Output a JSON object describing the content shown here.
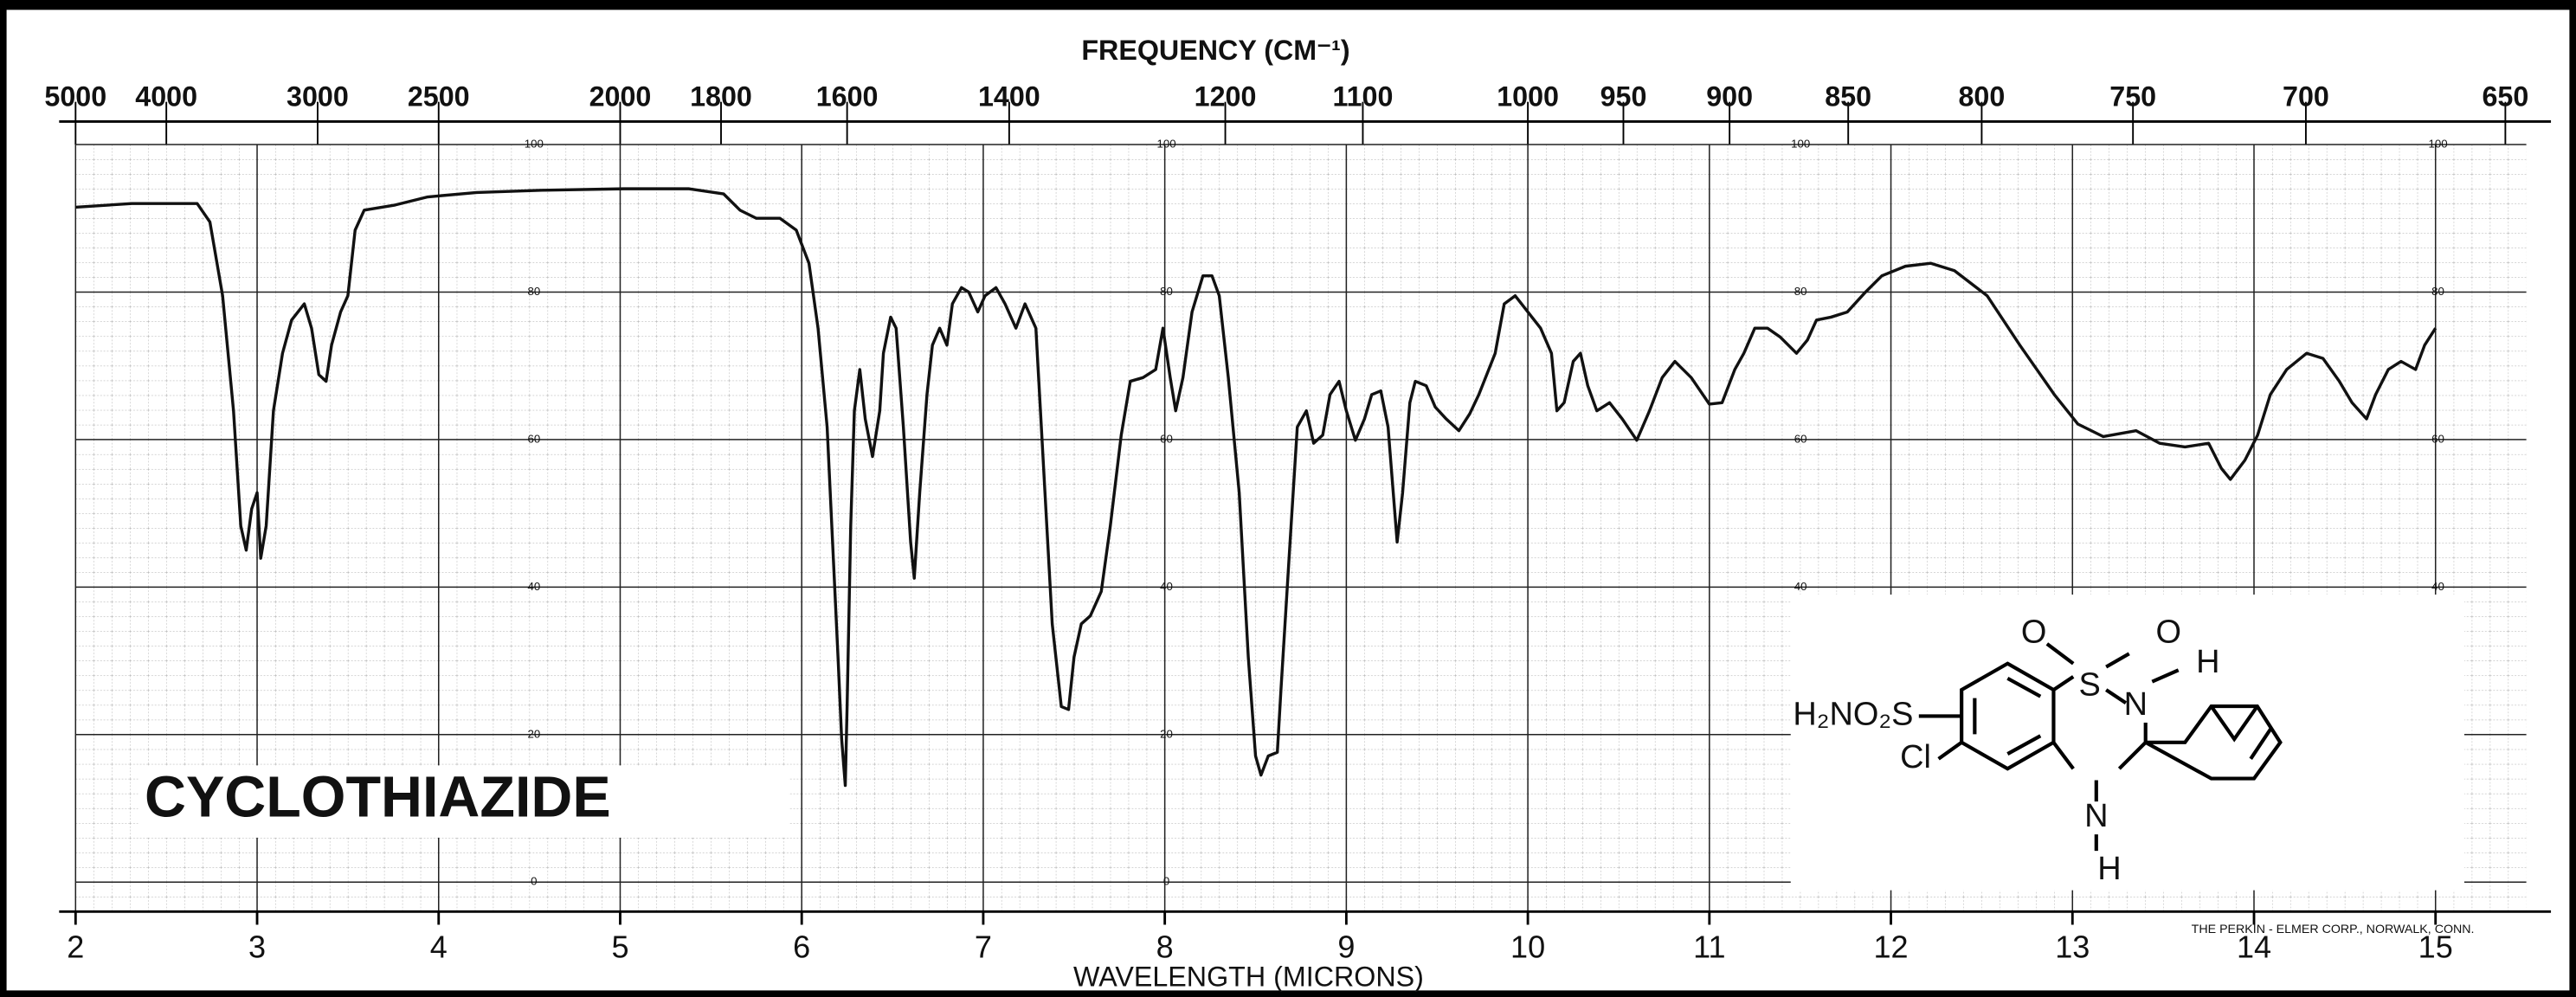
{
  "chart_data": {
    "type": "line",
    "title": "FREQUENCY (CM⁻¹)",
    "x_label": "WAVELENGTH (MICRONS)",
    "compound_name": "CYCLOTHIAZIDE",
    "credit": "THE PERKIN - ELMER CORP., NORWALK, CONN.",
    "structure_labels": [
      "O",
      "O",
      "H",
      "H₂NO₂S",
      "S",
      "N",
      "Cl",
      "N",
      "H"
    ],
    "color": "#111111",
    "grid": true,
    "xlim": [
      2,
      15.5
    ],
    "ylim": [
      -4,
      100
    ],
    "xticks": [
      2,
      3,
      4,
      5,
      6,
      7,
      8,
      9,
      10,
      11,
      12,
      13,
      14,
      15
    ],
    "yticks": [
      0,
      20,
      40,
      60,
      80,
      100
    ],
    "x2ticks": [
      5000,
      4000,
      3000,
      2500,
      2000,
      1800,
      1600,
      1400,
      1200,
      1100,
      1000,
      950,
      900,
      850,
      800,
      750,
      700,
      650
    ],
    "x": [
      2.0,
      2.31,
      2.67,
      2.74,
      2.81,
      2.87,
      2.91,
      2.94,
      2.97,
      3.0,
      3.02,
      3.05,
      3.09,
      3.14,
      3.19,
      3.26,
      3.3,
      3.34,
      3.38,
      3.41,
      3.46,
      3.5,
      3.54,
      3.59,
      3.76,
      3.94,
      4.21,
      4.57,
      5.02,
      5.38,
      5.57,
      5.66,
      5.75,
      5.88,
      5.97,
      6.04,
      6.09,
      6.14,
      6.17,
      6.2,
      6.22,
      6.24,
      6.25,
      6.27,
      6.29,
      6.32,
      6.35,
      6.39,
      6.43,
      6.45,
      6.49,
      6.52,
      6.56,
      6.6,
      6.62,
      6.65,
      6.69,
      6.72,
      6.76,
      6.8,
      6.83,
      6.88,
      6.92,
      6.97,
      7.01,
      7.07,
      7.12,
      7.18,
      7.23,
      7.29,
      7.34,
      7.38,
      7.43,
      7.47,
      7.5,
      7.54,
      7.59,
      7.65,
      7.7,
      7.76,
      7.81,
      7.88,
      7.95,
      7.99,
      8.03,
      8.06,
      8.1,
      8.15,
      8.21,
      8.26,
      8.3,
      8.35,
      8.41,
      8.46,
      8.5,
      8.53,
      8.57,
      8.62,
      8.64,
      8.69,
      8.73,
      8.78,
      8.82,
      8.87,
      8.91,
      8.96,
      9.0,
      9.05,
      9.1,
      9.14,
      9.19,
      9.23,
      9.28,
      9.31,
      9.35,
      9.38,
      9.44,
      9.49,
      9.55,
      9.62,
      9.68,
      9.73,
      9.82,
      9.87,
      9.93,
      10.0,
      10.07,
      10.13,
      10.16,
      10.2,
      10.25,
      10.29,
      10.33,
      10.38,
      10.45,
      10.52,
      10.6,
      10.67,
      10.74,
      10.81,
      10.9,
      11.0,
      11.07,
      11.14,
      11.19,
      11.25,
      11.32,
      11.39,
      11.48,
      11.54,
      11.59,
      11.67,
      11.76,
      11.86,
      11.95,
      12.08,
      12.22,
      12.35,
      12.53,
      12.71,
      12.9,
      13.03,
      13.17,
      13.35,
      13.48,
      13.62,
      13.75,
      13.82,
      13.87,
      13.95,
      14.02,
      14.09,
      14.18,
      14.29,
      14.38,
      14.47,
      14.54,
      14.62,
      14.67,
      14.74,
      14.81,
      14.89,
      14.94,
      15.0
    ],
    "values": [
      91.5,
      92.0,
      92.0,
      89.5,
      79.5,
      63.9,
      48.3,
      45.0,
      50.6,
      52.8,
      43.9,
      48.3,
      63.9,
      71.7,
      76.2,
      78.4,
      75.1,
      68.8,
      67.9,
      72.8,
      77.3,
      79.5,
      88.4,
      91.1,
      91.8,
      92.9,
      93.5,
      93.8,
      94.0,
      94.0,
      93.3,
      91.1,
      90.0,
      90.0,
      88.4,
      83.9,
      75.1,
      61.7,
      46.1,
      30.5,
      19.4,
      13.1,
      23.8,
      48.3,
      63.9,
      69.5,
      62.8,
      57.7,
      63.9,
      71.7,
      76.6,
      75.1,
      61.7,
      46.1,
      41.2,
      52.8,
      66.1,
      72.8,
      75.1,
      72.8,
      78.4,
      80.6,
      80.0,
      77.3,
      79.5,
      80.6,
      78.4,
      75.1,
      78.4,
      75.1,
      52.8,
      35.0,
      23.8,
      23.4,
      30.5,
      35.0,
      36.1,
      39.4,
      48.3,
      60.6,
      67.9,
      68.4,
      69.5,
      75.1,
      68.4,
      63.9,
      68.4,
      77.3,
      82.2,
      82.2,
      79.5,
      68.4,
      52.8,
      30.5,
      17.1,
      14.5,
      17.1,
      17.6,
      26.1,
      46.1,
      61.7,
      63.9,
      59.5,
      60.6,
      66.1,
      67.9,
      63.9,
      59.9,
      62.8,
      66.1,
      66.6,
      61.7,
      46.1,
      52.8,
      65.0,
      67.9,
      67.3,
      64.4,
      62.8,
      61.2,
      63.5,
      66.1,
      71.7,
      78.4,
      79.5,
      77.3,
      75.1,
      71.7,
      63.9,
      65.0,
      70.6,
      71.7,
      67.3,
      63.9,
      65.0,
      62.8,
      59.9,
      63.9,
      68.4,
      70.6,
      68.4,
      64.8,
      65.0,
      69.5,
      71.7,
      75.1,
      75.1,
      73.9,
      71.7,
      73.5,
      76.2,
      76.6,
      77.3,
      80.0,
      82.2,
      83.5,
      83.9,
      82.9,
      79.5,
      72.8,
      66.1,
      62.1,
      60.4,
      61.2,
      59.5,
      59.0,
      59.5,
      56.1,
      54.6,
      57.2,
      60.6,
      66.1,
      69.5,
      71.7,
      71.0,
      67.9,
      65.0,
      62.8,
      66.1,
      69.5,
      70.6,
      69.5,
      72.8,
      75.1
    ]
  }
}
